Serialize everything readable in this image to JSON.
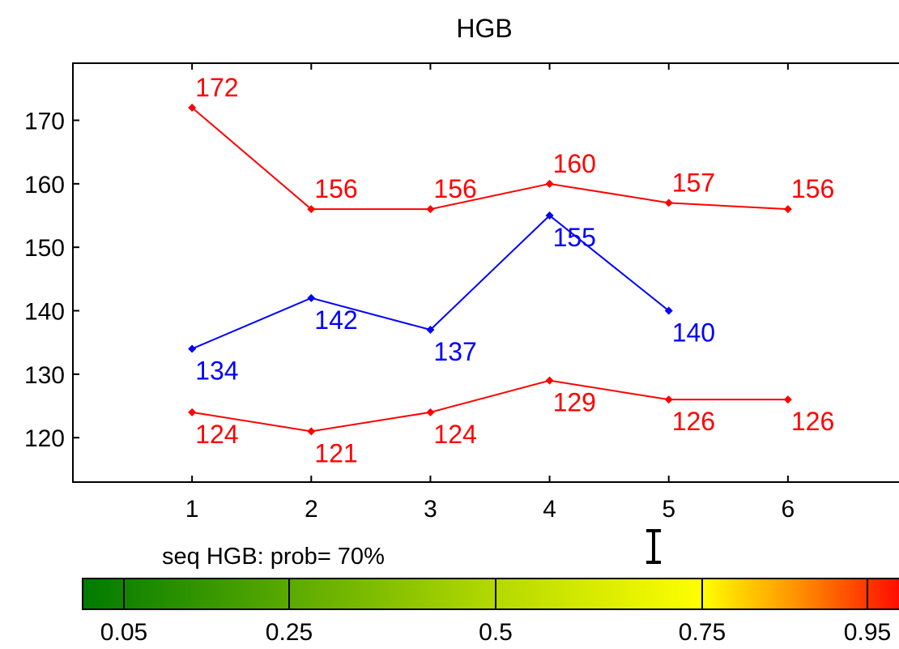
{
  "chart_data": {
    "type": "line",
    "title": "HGB",
    "xlabel": "",
    "ylabel": "",
    "x": [
      1,
      2,
      3,
      4,
      5,
      6
    ],
    "xlim": [
      0,
      7
    ],
    "ylim": [
      113,
      179
    ],
    "y_ticks": [
      120,
      130,
      140,
      150,
      160,
      170
    ],
    "grid": false,
    "series": [
      {
        "color": "#ff0000",
        "values": [
          172,
          156,
          156,
          160,
          157,
          156
        ],
        "label_position": "above"
      },
      {
        "color": "#0000ff",
        "values": [
          134,
          142,
          137,
          155,
          140,
          null
        ],
        "label_position": "below"
      },
      {
        "color": "#ff0000",
        "values": [
          124,
          121,
          124,
          129,
          126,
          126
        ],
        "label_position": "below"
      }
    ]
  },
  "caption": "seq HGB: prob= 70%",
  "cursor_icon": "text-cursor-icon",
  "color_scale": {
    "stops": [
      {
        "at": 0.0,
        "color": "#007a00"
      },
      {
        "at": 0.5,
        "color": "#b4d900"
      },
      {
        "at": 0.75,
        "color": "#ffff00"
      },
      {
        "at": 0.87,
        "color": "#ff8c00"
      },
      {
        "at": 1.0,
        "color": "#ff0000"
      }
    ],
    "ticks": [
      {
        "value": 0.05,
        "label": "0.05"
      },
      {
        "value": 0.25,
        "label": "0.25"
      },
      {
        "value": 0.5,
        "label": "0.5"
      },
      {
        "value": 0.75,
        "label": "0.75"
      },
      {
        "value": 0.95,
        "label": "0.95"
      }
    ]
  }
}
